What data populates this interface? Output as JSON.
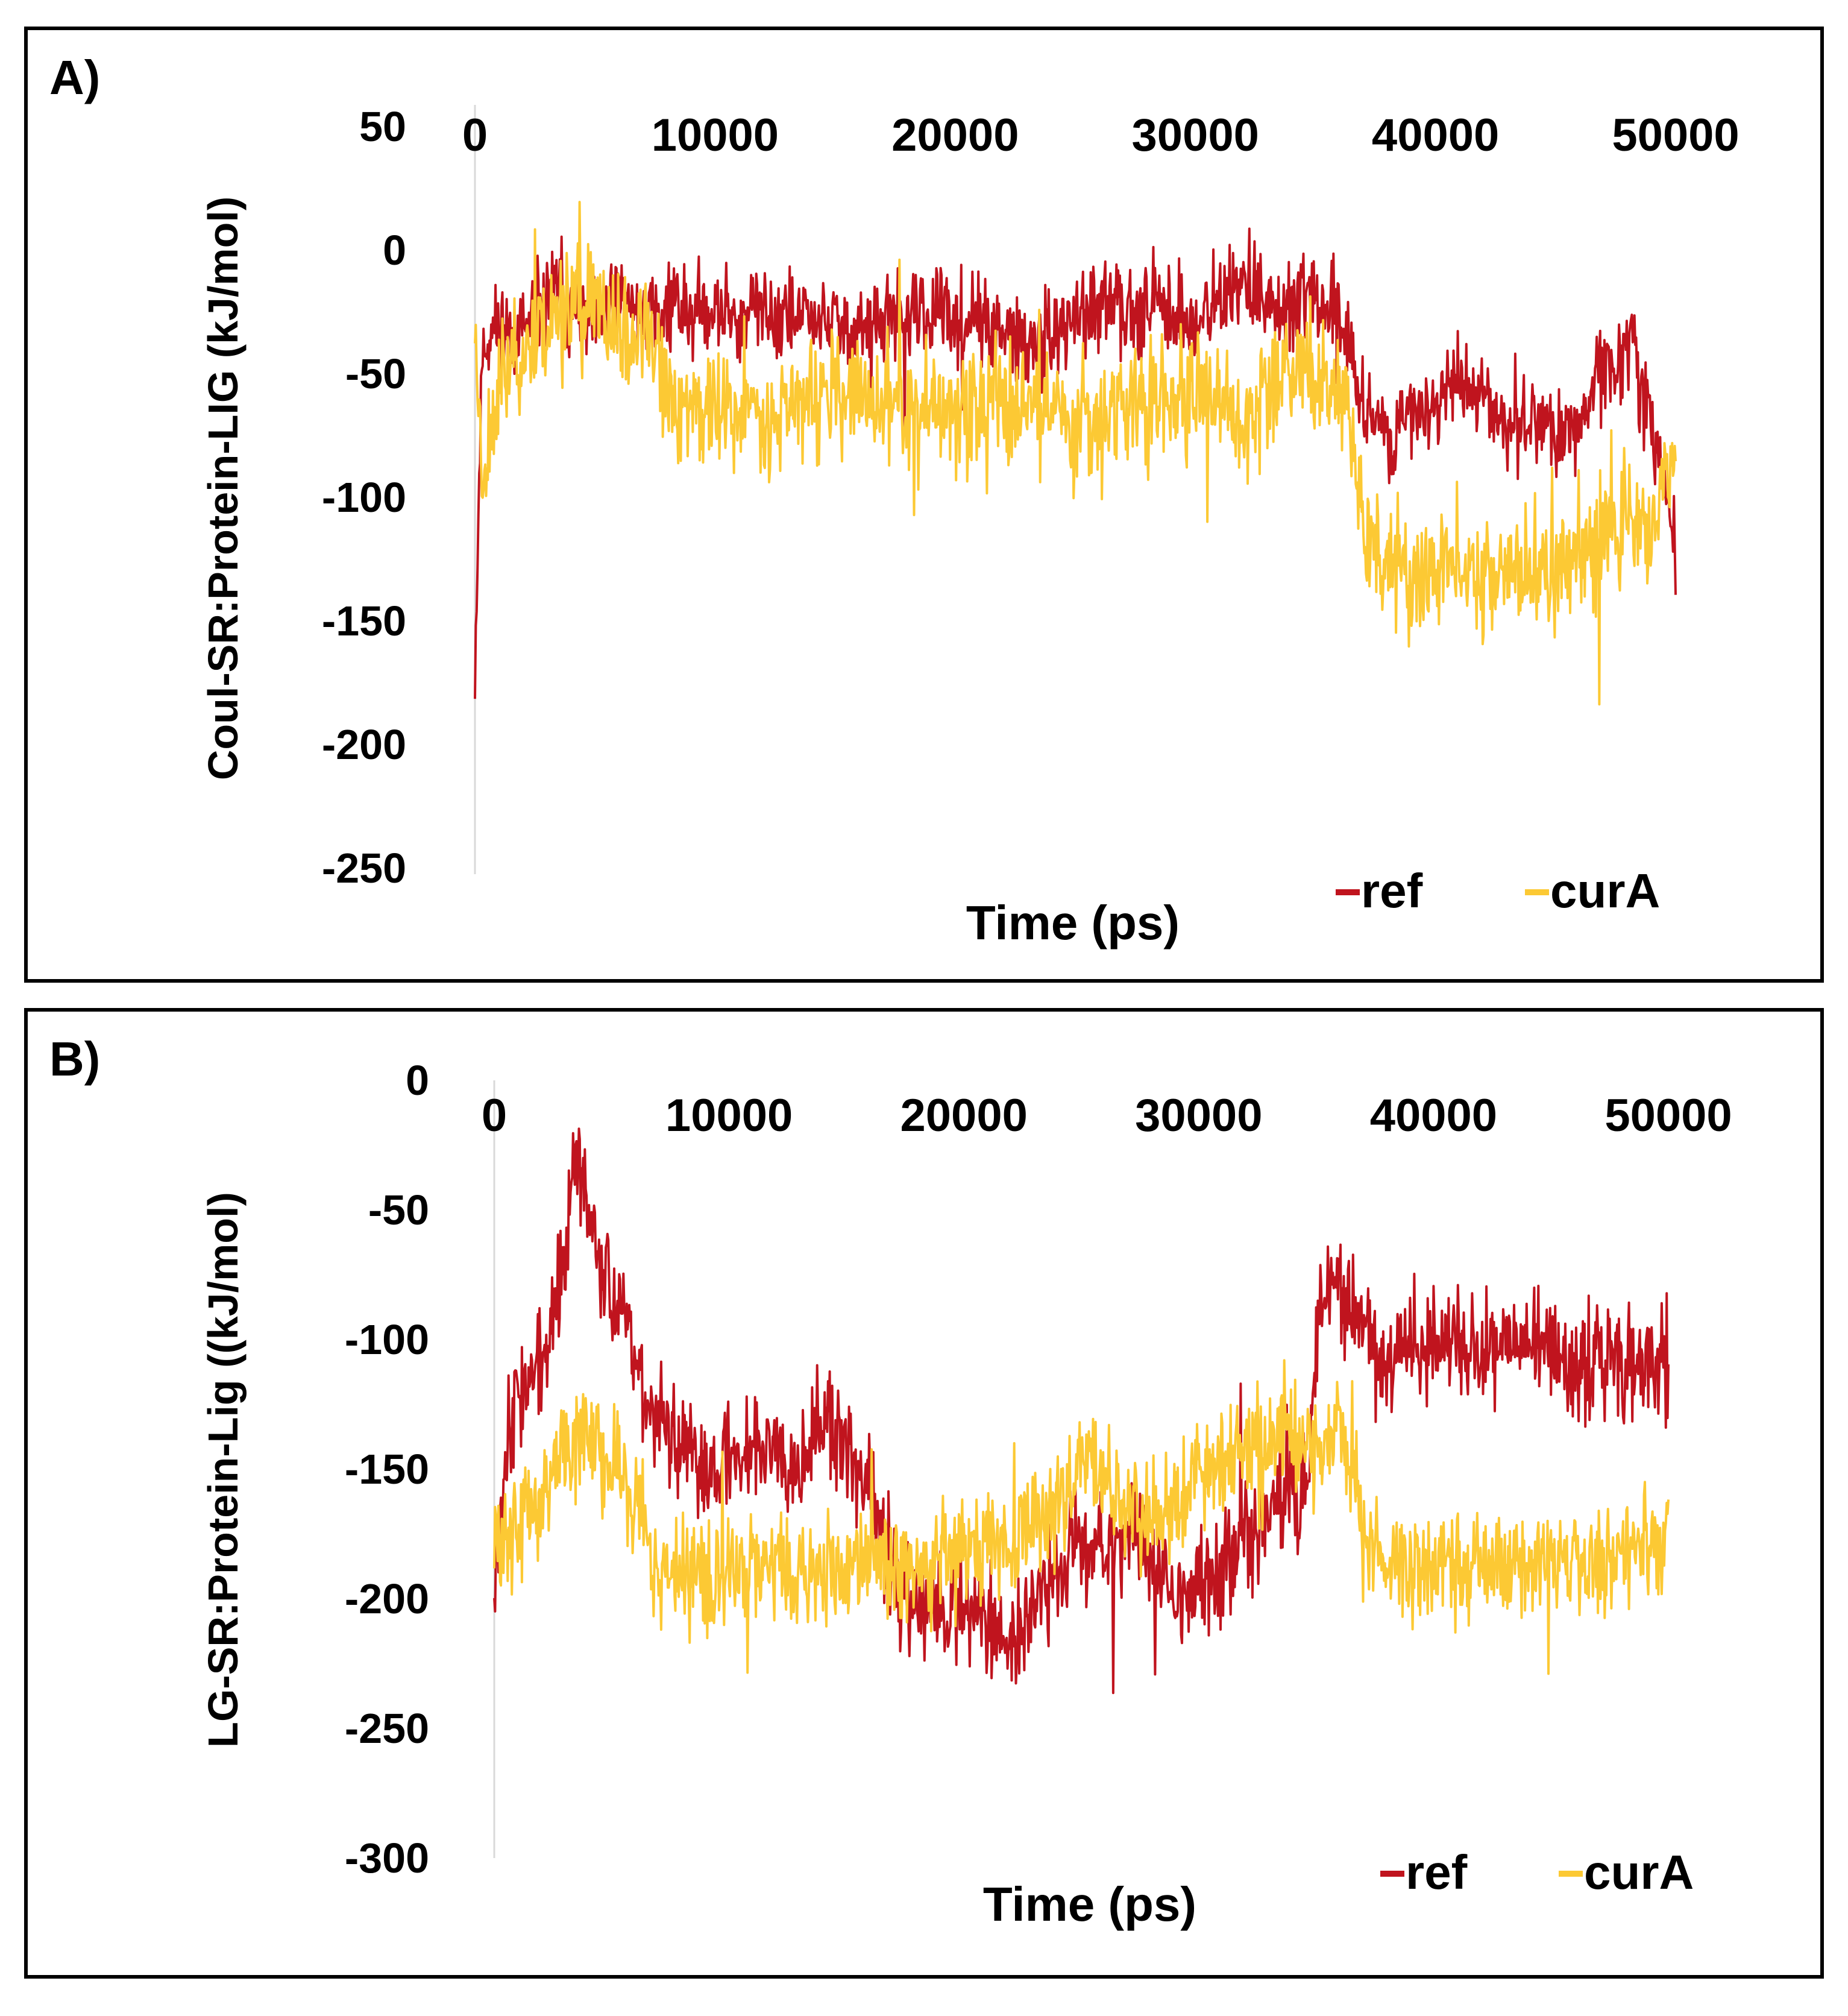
{
  "colors": {
    "ref": "#c0141e",
    "curA": "#fcc934",
    "frame": "#000000",
    "axis": "#d9d9d9"
  },
  "chart_data": [
    {
      "type": "line",
      "panel_label": "A)",
      "title": "",
      "xlabel": "Time (ps)",
      "ylabel": "Coul-SR:Protein-LIG (kJ/mol)",
      "xlim": [
        0,
        50000
      ],
      "ylim": [
        -250,
        50
      ],
      "x_ticks": [
        0,
        10000,
        20000,
        30000,
        40000,
        50000
      ],
      "x_tick_labels": [
        "0",
        "10000",
        "20000",
        "30000",
        "40000",
        "50000"
      ],
      "y_ticks": [
        50,
        0,
        -50,
        -100,
        -150,
        -200,
        -250
      ],
      "y_tick_labels": [
        "50",
        "0",
        "-50",
        "-100",
        "-150",
        "-200",
        "-250"
      ],
      "legend": {
        "position": "bottom-right",
        "entries": [
          "ref",
          "curA"
        ]
      },
      "series": [
        {
          "name": "ref",
          "color_key": "ref",
          "x": [
            0,
            300,
            1000,
            2000,
            3000,
            3500,
            4000,
            5000,
            6000,
            7000,
            8000,
            10000,
            12000,
            14000,
            15000,
            16000,
            18000,
            19000,
            20000,
            21000,
            22000,
            23000,
            24000,
            25000,
            26000,
            27000,
            28000,
            29000,
            30000,
            31000,
            32000,
            33000,
            34000,
            35000,
            36000,
            36500,
            37000,
            38000,
            39000,
            40000,
            41000,
            42000,
            43000,
            44000,
            45000,
            46000,
            47000,
            48000,
            49000,
            50000
          ],
          "y": [
            -170,
            -40,
            -30,
            -35,
            -20,
            -15,
            -25,
            -30,
            -20,
            -25,
            -22,
            -25,
            -25,
            -28,
            -30,
            -32,
            -28,
            -25,
            -28,
            -30,
            -35,
            -40,
            -35,
            -28,
            -25,
            -22,
            -20,
            -25,
            -30,
            -20,
            -15,
            -20,
            -25,
            -20,
            -25,
            -45,
            -60,
            -75,
            -70,
            -60,
            -55,
            -60,
            -70,
            -65,
            -75,
            -70,
            -50,
            -40,
            -65,
            -125
          ],
          "noise": 13,
          "seed": 11
        },
        {
          "name": "curA",
          "color_key": "curA",
          "x": [
            0,
            300,
            1000,
            2000,
            3000,
            4000,
            5000,
            6000,
            7000,
            8000,
            10000,
            12000,
            14000,
            16000,
            18000,
            20000,
            22000,
            24000,
            25000,
            26000,
            27000,
            28000,
            30000,
            31000,
            32000,
            33000,
            34000,
            35000,
            36000,
            36500,
            37000,
            38000,
            39000,
            40000,
            41000,
            42000,
            43000,
            44000,
            45000,
            46000,
            47000,
            48000,
            49000,
            50000
          ],
          "y": [
            -30,
            -90,
            -55,
            -40,
            -30,
            -20,
            -25,
            -35,
            -30,
            -60,
            -65,
            -65,
            -60,
            -60,
            -65,
            -65,
            -60,
            -62,
            -70,
            -65,
            -62,
            -60,
            -60,
            -62,
            -70,
            -55,
            -45,
            -50,
            -55,
            -70,
            -110,
            -130,
            -135,
            -130,
            -125,
            -130,
            -128,
            -130,
            -132,
            -120,
            -115,
            -110,
            -110,
            -85
          ],
          "noise": 17,
          "seed": 23
        }
      ]
    },
    {
      "type": "line",
      "panel_label": "B)",
      "title": "",
      "xlabel": "Time (ps)",
      "ylabel": "LG-SR:Protein-Lig ((kJ/mol)",
      "xlim": [
        0,
        50000
      ],
      "ylim": [
        -300,
        0
      ],
      "x_ticks": [
        0,
        10000,
        20000,
        30000,
        40000,
        50000
      ],
      "x_tick_labels": [
        "0",
        "10000",
        "20000",
        "30000",
        "40000",
        "50000"
      ],
      "y_ticks": [
        0,
        -50,
        -100,
        -150,
        -200,
        -250,
        -300
      ],
      "y_tick_labels": [
        "0",
        "-50",
        "-100",
        "-150",
        "-200",
        "-250",
        "-300"
      ],
      "legend": {
        "position": "bottom-right",
        "entries": [
          "ref",
          "curA"
        ]
      },
      "series": [
        {
          "name": "ref",
          "color_key": "ref",
          "x": [
            0,
            500,
            1000,
            2000,
            3000,
            3500,
            4000,
            5000,
            6000,
            7000,
            8000,
            9000,
            10000,
            11000,
            12000,
            13000,
            14000,
            15000,
            16000,
            17000,
            18000,
            19000,
            20000,
            21000,
            22000,
            23000,
            24000,
            25000,
            26000,
            27000,
            28000,
            29000,
            30000,
            31000,
            32000,
            33000,
            34000,
            34700,
            35000,
            35500,
            36000,
            37000,
            38000,
            39000,
            40000,
            42000,
            44000,
            46000,
            48000,
            50000
          ],
          "y": [
            -190,
            -140,
            -120,
            -110,
            -70,
            -30,
            -50,
            -80,
            -110,
            -130,
            -145,
            -150,
            -145,
            -140,
            -140,
            -145,
            -130,
            -145,
            -160,
            -195,
            -200,
            -205,
            -200,
            -210,
            -215,
            -205,
            -190,
            -175,
            -180,
            -175,
            -185,
            -200,
            -195,
            -190,
            -175,
            -170,
            -155,
            -160,
            -90,
            -75,
            -80,
            -95,
            -110,
            -105,
            -100,
            -105,
            -100,
            -110,
            -105,
            -115
          ],
          "noise": 15,
          "seed": 37
        },
        {
          "name": "curA",
          "color_key": "curA",
          "x": [
            0,
            1000,
            2000,
            3000,
            4000,
            5000,
            6000,
            7000,
            8000,
            10000,
            12000,
            14000,
            16000,
            18000,
            20000,
            22000,
            24000,
            25000,
            26000,
            28000,
            29000,
            30000,
            32000,
            34000,
            35000,
            35500,
            36000,
            37000,
            38000,
            40000,
            42000,
            44000,
            46000,
            48000,
            50000
          ],
          "y": [
            -180,
            -170,
            -160,
            -140,
            -135,
            -145,
            -165,
            -185,
            -190,
            -190,
            -185,
            -190,
            -185,
            -190,
            -180,
            -175,
            -165,
            -150,
            -155,
            -170,
            -165,
            -150,
            -140,
            -135,
            -145,
            -140,
            -130,
            -175,
            -185,
            -185,
            -185,
            -190,
            -185,
            -180,
            -180
          ],
          "noise": 15,
          "seed": 59
        }
      ]
    }
  ]
}
